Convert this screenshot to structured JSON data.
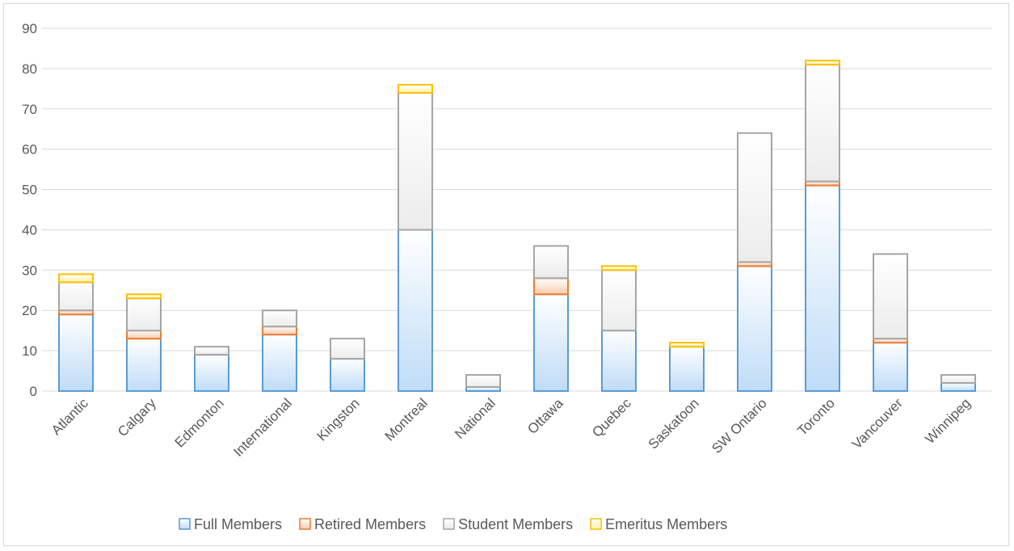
{
  "chart_data": {
    "type": "bar",
    "stacked": true,
    "categories": [
      "Atlantic",
      "Calgary",
      "Edmonton",
      "International",
      "Kingston",
      "Montreal",
      "National",
      "Ottawa",
      "Quebec",
      "Saskatoon",
      "SW Ontario",
      "Toronto",
      "Vancouver",
      "Winnipeg"
    ],
    "series": [
      {
        "name": "Full Members",
        "color": "#5b9bd5",
        "fill": "#bfdcf7",
        "values": [
          19,
          13,
          9,
          14,
          8,
          40,
          1,
          24,
          15,
          11,
          31,
          51,
          12,
          2
        ]
      },
      {
        "name": "Retired Members",
        "color": "#ed7d31",
        "fill": "#f8cbad",
        "values": [
          1,
          2,
          0,
          2,
          0,
          0,
          0,
          4,
          0,
          0,
          1,
          1,
          1,
          0
        ]
      },
      {
        "name": "Student Members",
        "color": "#a5a5a5",
        "fill": "#ececec",
        "values": [
          7,
          8,
          2,
          4,
          5,
          34,
          3,
          8,
          15,
          0,
          32,
          29,
          21,
          2
        ]
      },
      {
        "name": "Emeritus Members",
        "color": "#ffc000",
        "fill": "#fff2a8",
        "values": [
          2,
          1,
          0,
          0,
          0,
          2,
          0,
          0,
          1,
          1,
          0,
          1,
          0,
          0
        ]
      }
    ],
    "ylim": [
      0,
      90
    ],
    "yticks": [
      0,
      10,
      20,
      30,
      40,
      50,
      60,
      70,
      80,
      90
    ],
    "grid": true,
    "legend_position": "bottom",
    "title": "",
    "xlabel": "",
    "ylabel": ""
  }
}
